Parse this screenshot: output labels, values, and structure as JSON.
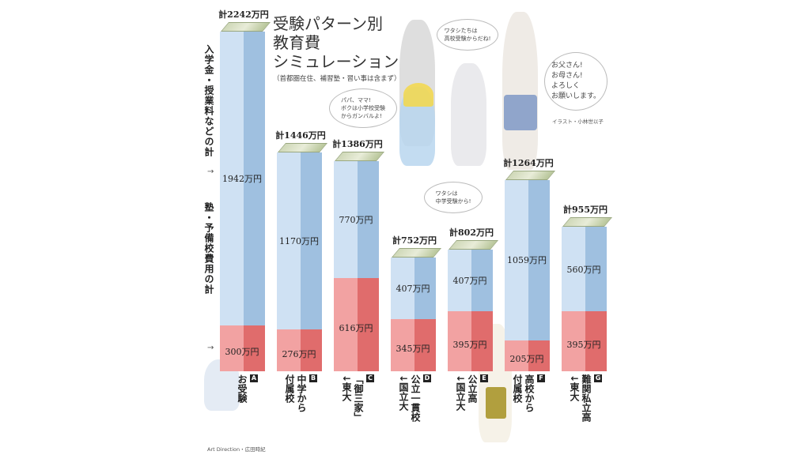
{
  "title_lines": [
    "受験パターン別",
    "教育費",
    "シミュレーション"
  ],
  "subtitle": "（首都圏在住、補習塾・習い事は含まず）",
  "axis_labels": {
    "tuition": "入学金・授業料などの計",
    "cram": "塾・予備校費用の計",
    "arrow": "→"
  },
  "bubbles": {
    "high": "ワタシたちは\n高校受験からだね!",
    "boy": "パパ、ママ!\nボクは小学校受験\nからガンバルよ!",
    "middle": "ワタシは\n中学受験から!",
    "girl": "お父さん!\nお母さん!\nよろしく\nお願いします。"
  },
  "illustration_credit": "イラスト・小林世以子",
  "art_direction": "Art Direction・広田時紀",
  "colors": {
    "blue_front": "#cfe1f3",
    "blue_side": "#9fc0e0",
    "red_front": "#f2a2a2",
    "red_side": "#e06c6c"
  },
  "chart_data": {
    "type": "bar",
    "stacked": true,
    "categories": [
      {
        "letter": "A",
        "label": "お受験",
        "total_label": "計2242万円"
      },
      {
        "letter": "B",
        "label": "中学から\n付属校",
        "total_label": "計1446万円"
      },
      {
        "letter": "C",
        "label": "「御三家」\n↓東大",
        "total_label": "計1386万円"
      },
      {
        "letter": "D",
        "label": "公立一貫校\n↓国立大",
        "total_label": "計752万円"
      },
      {
        "letter": "E",
        "label": "公立高\n↓国立大",
        "total_label": "計802万円"
      },
      {
        "letter": "F",
        "label": "高校から\n付属校",
        "total_label": "計1264万円"
      },
      {
        "letter": "G",
        "label": "難関私立高\n↓東大",
        "total_label": "計955万円"
      }
    ],
    "series": [
      {
        "name": "塾・予備校費用の計",
        "values": [
          300,
          276,
          616,
          345,
          395,
          205,
          395
        ],
        "labels": [
          "300万円",
          "276万円",
          "616万円",
          "345万円",
          "395万円",
          "205万円",
          "395万円"
        ]
      },
      {
        "name": "入学金・授業料などの計",
        "values": [
          1942,
          1170,
          770,
          407,
          407,
          1059,
          560
        ],
        "labels": [
          "1942万円",
          "1170万円",
          "770万円",
          "407万円",
          "407万円",
          "1059万円",
          "560万円"
        ]
      }
    ],
    "totals": [
      2242,
      1446,
      1386,
      752,
      802,
      1264,
      955
    ],
    "unit": "万円",
    "ylim": [
      0,
      2242
    ]
  }
}
